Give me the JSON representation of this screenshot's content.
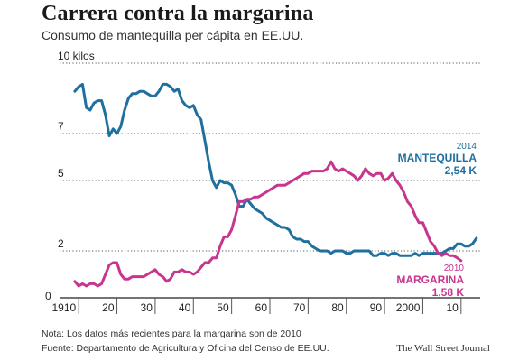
{
  "header": {
    "title": "Carrera contra la margarina",
    "subtitle": "Consumo de mantequilla per cápita en EE.UU."
  },
  "footer": {
    "note": "Nota: Los datos más recientes para la margarina son de 2010",
    "source": "Fuente: Departamento de Agricultura y Oficina del Censo de EE.UU.",
    "publisher": "The Wall Street Journal"
  },
  "colors": {
    "butter": "#1f6f9f",
    "margarine": "#c7358e",
    "grid": "#555555",
    "axis": "#222222"
  },
  "chart_data": {
    "type": "line",
    "title": "Carrera contra la margarina",
    "subtitle": "Consumo de mantequilla per cápita en EE.UU.",
    "xlim": [
      1905,
      2015
    ],
    "ylim": [
      0,
      10
    ],
    "x_ticks": [
      {
        "value": 1910,
        "label": "1910"
      },
      {
        "value": 1920,
        "label": "20"
      },
      {
        "value": 1930,
        "label": "30"
      },
      {
        "value": 1940,
        "label": "40"
      },
      {
        "value": 1950,
        "label": "50"
      },
      {
        "value": 1960,
        "label": "60"
      },
      {
        "value": 1970,
        "label": "70"
      },
      {
        "value": 1980,
        "label": "80"
      },
      {
        "value": 1990,
        "label": "90"
      },
      {
        "value": 2000,
        "label": "2000"
      },
      {
        "value": 2010,
        "label": "10"
      }
    ],
    "y_ticks": [
      {
        "value": 2,
        "label": "2"
      },
      {
        "value": 5,
        "label": "5"
      },
      {
        "value": 7,
        "label": "7"
      },
      {
        "value": 10,
        "label": "10 kilos"
      }
    ],
    "grid": "horizontal dotted",
    "series": [
      {
        "key": "butter",
        "x": [
          1909,
          1910,
          1911,
          1912,
          1913,
          1914,
          1915,
          1916,
          1917,
          1918,
          1919,
          1920,
          1921,
          1922,
          1923,
          1924,
          1925,
          1926,
          1927,
          1928,
          1929,
          1930,
          1931,
          1932,
          1933,
          1934,
          1935,
          1936,
          1937,
          1938,
          1939,
          1940,
          1941,
          1942,
          1943,
          1944,
          1945,
          1946,
          1947,
          1948,
          1949,
          1950,
          1951,
          1952,
          1953,
          1954,
          1955,
          1956,
          1957,
          1958,
          1959,
          1960,
          1961,
          1962,
          1963,
          1964,
          1965,
          1966,
          1967,
          1968,
          1969,
          1970,
          1971,
          1972,
          1973,
          1974,
          1975,
          1976,
          1977,
          1978,
          1979,
          1980,
          1981,
          1982,
          1983,
          1984,
          1985,
          1986,
          1987,
          1988,
          1989,
          1990,
          1991,
          1992,
          1993,
          1994,
          1995,
          1996,
          1997,
          1998,
          1999,
          2000,
          2001,
          2002,
          2003,
          2004,
          2005,
          2006,
          2007,
          2008,
          2009,
          2010,
          2011,
          2012,
          2013,
          2014
        ],
        "y": [
          8.8,
          9.0,
          9.1,
          8.1,
          8.0,
          8.3,
          8.4,
          8.4,
          7.8,
          6.9,
          7.2,
          7.0,
          7.3,
          8.0,
          8.5,
          8.7,
          8.7,
          8.8,
          8.8,
          8.7,
          8.6,
          8.6,
          8.8,
          9.1,
          9.1,
          9.0,
          8.8,
          8.9,
          8.4,
          8.2,
          8.1,
          8.2,
          7.8,
          7.6,
          6.7,
          5.8,
          5.0,
          4.7,
          5.0,
          4.9,
          4.9,
          4.8,
          4.4,
          3.9,
          3.9,
          4.2,
          4.0,
          3.8,
          3.7,
          3.6,
          3.4,
          3.3,
          3.2,
          3.1,
          3.0,
          3.0,
          2.9,
          2.6,
          2.5,
          2.5,
          2.4,
          2.4,
          2.2,
          2.1,
          2.0,
          2.0,
          2.0,
          1.9,
          2.0,
          2.0,
          2.0,
          1.9,
          1.9,
          2.0,
          2.0,
          2.0,
          2.0,
          2.0,
          1.8,
          1.8,
          1.9,
          1.9,
          1.8,
          1.9,
          1.9,
          1.8,
          1.8,
          1.8,
          1.8,
          1.9,
          1.8,
          1.9,
          1.9,
          1.9,
          1.9,
          1.9,
          1.9,
          2.0,
          2.1,
          2.1,
          2.3,
          2.3,
          2.2,
          2.2,
          2.3,
          2.54
        ],
        "label_year": "2014",
        "label_name": "MANTEQUILLA",
        "label_value": "2,54 K"
      },
      {
        "key": "margarine",
        "x": [
          1909,
          1910,
          1911,
          1912,
          1913,
          1914,
          1915,
          1916,
          1917,
          1918,
          1919,
          1920,
          1921,
          1922,
          1923,
          1924,
          1925,
          1926,
          1927,
          1928,
          1929,
          1930,
          1931,
          1932,
          1933,
          1934,
          1935,
          1936,
          1937,
          1938,
          1939,
          1940,
          1941,
          1942,
          1943,
          1944,
          1945,
          1946,
          1947,
          1948,
          1949,
          1950,
          1951,
          1952,
          1953,
          1954,
          1955,
          1956,
          1957,
          1958,
          1959,
          1960,
          1961,
          1962,
          1963,
          1964,
          1965,
          1966,
          1967,
          1968,
          1969,
          1970,
          1971,
          1972,
          1973,
          1974,
          1975,
          1976,
          1977,
          1978,
          1979,
          1980,
          1981,
          1982,
          1983,
          1984,
          1985,
          1986,
          1987,
          1988,
          1989,
          1990,
          1991,
          1992,
          1993,
          1994,
          1995,
          1996,
          1997,
          1998,
          1999,
          2000,
          2001,
          2002,
          2003,
          2004,
          2005,
          2006,
          2007,
          2008,
          2009,
          2010
        ],
        "y": [
          0.7,
          0.5,
          0.6,
          0.5,
          0.6,
          0.6,
          0.5,
          0.6,
          1.0,
          1.4,
          1.5,
          1.5,
          1.0,
          0.8,
          0.8,
          0.9,
          0.9,
          0.9,
          0.9,
          1.0,
          1.1,
          1.2,
          1.0,
          0.9,
          0.7,
          0.8,
          1.1,
          1.1,
          1.2,
          1.1,
          1.1,
          1.0,
          1.1,
          1.3,
          1.5,
          1.5,
          1.7,
          1.7,
          2.2,
          2.6,
          2.6,
          2.9,
          3.5,
          4.1,
          4.1,
          4.2,
          4.2,
          4.3,
          4.3,
          4.4,
          4.5,
          4.6,
          4.7,
          4.8,
          4.8,
          4.8,
          4.9,
          5.0,
          5.1,
          5.2,
          5.3,
          5.3,
          5.4,
          5.4,
          5.4,
          5.4,
          5.5,
          5.8,
          5.5,
          5.4,
          5.5,
          5.4,
          5.3,
          5.2,
          5.0,
          5.2,
          5.5,
          5.3,
          5.2,
          5.3,
          5.3,
          5.0,
          5.1,
          5.3,
          5.0,
          4.8,
          4.5,
          4.1,
          3.9,
          3.5,
          3.2,
          3.2,
          2.8,
          2.4,
          2.2,
          1.9,
          1.8,
          1.9,
          1.8,
          1.8,
          1.7,
          1.58
        ],
        "label_year": "2010",
        "label_name": "MARGARINA",
        "label_value": "1,58 K"
      }
    ]
  }
}
